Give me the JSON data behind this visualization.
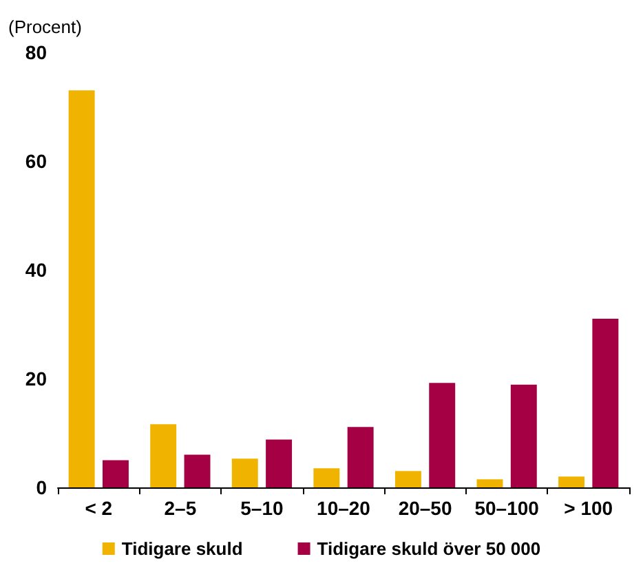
{
  "chart_data": {
    "type": "bar",
    "ylabel": "(Procent)",
    "categories": [
      "< 2",
      "2–5",
      "5–10",
      "10–20",
      "20–50",
      "50–100",
      "> 100"
    ],
    "series": [
      {
        "name": "Tidigare skuld",
        "color": "#f0b400",
        "values": [
          73,
          11.6,
          5.3,
          3.5,
          3,
          1.5,
          2
        ]
      },
      {
        "name": "Tidigare skuld över 50 000",
        "color": "#a50044",
        "values": [
          5,
          6,
          8.8,
          11.1,
          19.2,
          18.9,
          31
        ]
      }
    ],
    "ylim": [
      0,
      80
    ],
    "yticks": [
      0,
      20,
      40,
      60,
      80
    ],
    "grid": false,
    "legend": "bottom"
  }
}
